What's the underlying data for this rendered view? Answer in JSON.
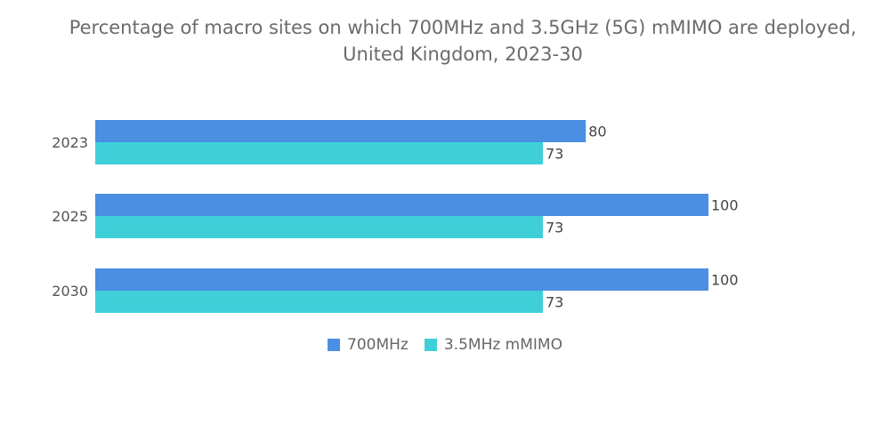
{
  "chart_data": {
    "type": "bar",
    "orientation": "horizontal",
    "title": "Percentage of macro sites on which 700MHz and 3.5GHz (5G) mMIMO are deployed, United Kingdom, 2023-30",
    "title_lines": [
      "Percentage of macro sites on which 700MHz and 3.5GHz (5G) mMIMO are deployed,",
      "United Kingdom, 2023-30"
    ],
    "categories": [
      "2023",
      "2025",
      "2030"
    ],
    "series": [
      {
        "name": "700MHz",
        "values": [
          80,
          100,
          100
        ],
        "color": "#4a8fe2"
      },
      {
        "name": "3.5MHz mMIMO",
        "values": [
          73,
          73,
          73
        ],
        "color": "#3ecfd9"
      }
    ],
    "xlim": [
      0,
      100
    ],
    "grid": false,
    "data_labels": true,
    "legend_position": "bottom"
  }
}
